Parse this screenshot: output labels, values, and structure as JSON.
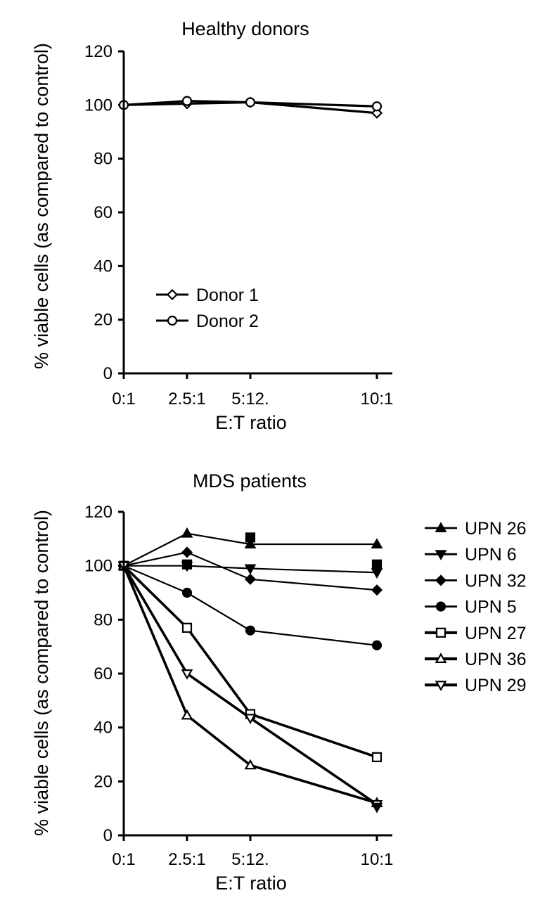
{
  "chart_data": [
    {
      "type": "line",
      "title": "Healthy donors",
      "xlabel": "E:T ratio",
      "ylabel": "% viable cells (as compared to control)",
      "categories": [
        "0:1",
        "2.5:1",
        "5:12.",
        "10:1"
      ],
      "x": [
        0,
        2.5,
        5,
        10
      ],
      "ylim": [
        0,
        120
      ],
      "yticks": [
        "0",
        "20",
        "40",
        "60",
        "80",
        "100",
        "120"
      ],
      "legend_position": "lower-left inside",
      "series": [
        {
          "name": "Donor 1",
          "marker": "open-diamond",
          "values": [
            100,
            100.5,
            101,
            97
          ]
        },
        {
          "name": "Donor 2",
          "marker": "open-circle",
          "values": [
            100,
            101.5,
            101,
            99.5
          ]
        }
      ]
    },
    {
      "type": "line",
      "title": "MDS patients",
      "xlabel": "E:T ratio",
      "ylabel": "% viable cells (as compared to control)",
      "categories": [
        "0:1",
        "2.5:1",
        "5:12.",
        "10:1"
      ],
      "x": [
        0,
        2.5,
        5,
        10
      ],
      "ylim": [
        0,
        120
      ],
      "yticks": [
        "0",
        "20",
        "40",
        "60",
        "80",
        "100",
        "120"
      ],
      "legend_position": "right, outside",
      "series": [
        {
          "name": "UPN 26",
          "marker": "filled-triangle-up",
          "values": [
            100,
            112,
            108,
            108
          ]
        },
        {
          "name": "UPN 6",
          "marker": "filled-triangle-down",
          "values": [
            100,
            100,
            99,
            97.5
          ]
        },
        {
          "name": "UPN 32",
          "marker": "filled-diamond",
          "values": [
            100,
            105,
            95,
            91
          ]
        },
        {
          "name": "UPN 5",
          "marker": "filled-circle",
          "values": [
            100,
            90,
            76,
            70.5
          ]
        },
        {
          "name": "UPN 27",
          "marker": "open-square",
          "values": [
            100,
            77,
            45,
            29
          ]
        },
        {
          "name": "UPN 36",
          "marker": "open-triangle-up",
          "values": [
            100,
            44.5,
            26,
            12
          ]
        },
        {
          "name": "UPN 29",
          "marker": "open-triangle-down",
          "values": [
            100,
            60,
            43.5,
            11.5
          ]
        }
      ],
      "extra_marks": [
        {
          "marker": "filled-square",
          "x": 2.5,
          "value": 100.5
        },
        {
          "marker": "filled-square",
          "x": 5,
          "value": 110.5
        },
        {
          "marker": "filled-square",
          "x": 10,
          "value": 100.5
        },
        {
          "marker": "filled-triangle-down",
          "x": 10,
          "value": 10.5
        }
      ]
    }
  ]
}
